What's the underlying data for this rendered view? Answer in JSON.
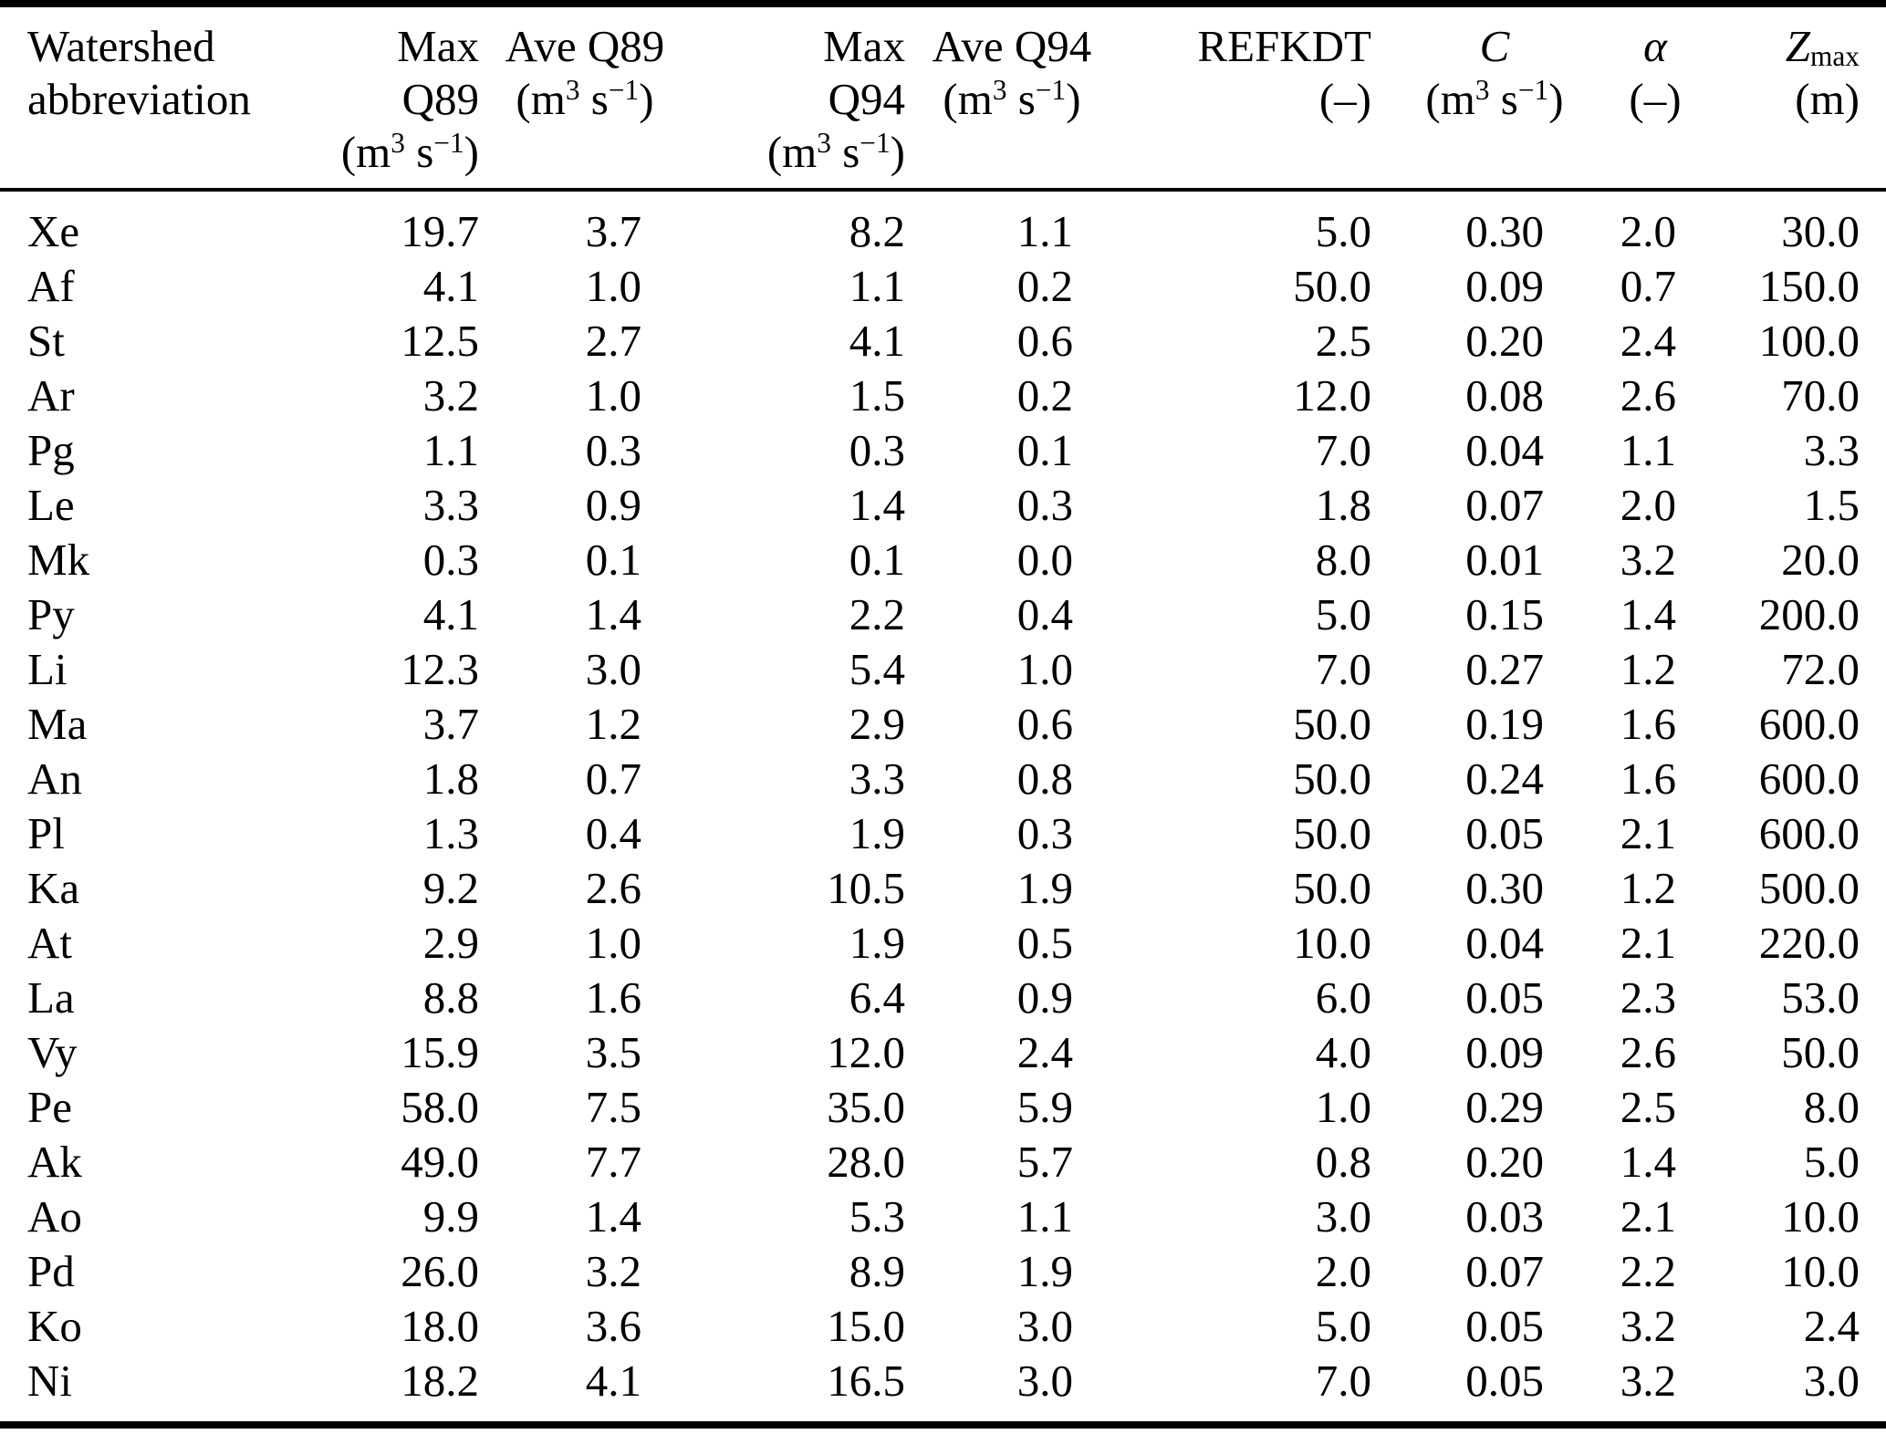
{
  "colors": {
    "text": "#000000",
    "background": "#ffffff",
    "rule": "#000000"
  },
  "table": {
    "header": {
      "watershed_line1": "Watershed",
      "watershed_line2": "abbreviation",
      "max_label": "Max",
      "q89_label": "Q89",
      "q94_label": "Q94",
      "ave_q89_label": "Ave Q89",
      "ave_q94_label": "Ave Q94",
      "refkdt_label": "REFKDT",
      "c_label": "C",
      "alpha_label": "α",
      "z_label": "Z",
      "z_subscript": "max",
      "unit_dimensionless": "(–)",
      "unit_meters": "(m)"
    },
    "unit_m3s": {
      "pre": "(m",
      "exponent": "3",
      "mid": " s",
      "exponent_minus": "−1",
      "post": ")"
    },
    "rows": [
      {
        "abbr": "Xe",
        "max_q89": "19.7",
        "ave_q89": "3.7",
        "max_q94": "8.2",
        "ave_q94": "1.1",
        "refkdt": "5.0",
        "c": "0.30",
        "alpha": "2.0",
        "zmax": "30.0"
      },
      {
        "abbr": "Af",
        "max_q89": "4.1",
        "ave_q89": "1.0",
        "max_q94": "1.1",
        "ave_q94": "0.2",
        "refkdt": "50.0",
        "c": "0.09",
        "alpha": "0.7",
        "zmax": "150.0"
      },
      {
        "abbr": "St",
        "max_q89": "12.5",
        "ave_q89": "2.7",
        "max_q94": "4.1",
        "ave_q94": "0.6",
        "refkdt": "2.5",
        "c": "0.20",
        "alpha": "2.4",
        "zmax": "100.0"
      },
      {
        "abbr": "Ar",
        "max_q89": "3.2",
        "ave_q89": "1.0",
        "max_q94": "1.5",
        "ave_q94": "0.2",
        "refkdt": "12.0",
        "c": "0.08",
        "alpha": "2.6",
        "zmax": "70.0"
      },
      {
        "abbr": "Pg",
        "max_q89": "1.1",
        "ave_q89": "0.3",
        "max_q94": "0.3",
        "ave_q94": "0.1",
        "refkdt": "7.0",
        "c": "0.04",
        "alpha": "1.1",
        "zmax": "3.3"
      },
      {
        "abbr": "Le",
        "max_q89": "3.3",
        "ave_q89": "0.9",
        "max_q94": "1.4",
        "ave_q94": "0.3",
        "refkdt": "1.8",
        "c": "0.07",
        "alpha": "2.0",
        "zmax": "1.5"
      },
      {
        "abbr": "Mk",
        "max_q89": "0.3",
        "ave_q89": "0.1",
        "max_q94": "0.1",
        "ave_q94": "0.0",
        "refkdt": "8.0",
        "c": "0.01",
        "alpha": "3.2",
        "zmax": "20.0"
      },
      {
        "abbr": "Py",
        "max_q89": "4.1",
        "ave_q89": "1.4",
        "max_q94": "2.2",
        "ave_q94": "0.4",
        "refkdt": "5.0",
        "c": "0.15",
        "alpha": "1.4",
        "zmax": "200.0"
      },
      {
        "abbr": "Li",
        "max_q89": "12.3",
        "ave_q89": "3.0",
        "max_q94": "5.4",
        "ave_q94": "1.0",
        "refkdt": "7.0",
        "c": "0.27",
        "alpha": "1.2",
        "zmax": "72.0"
      },
      {
        "abbr": "Ma",
        "max_q89": "3.7",
        "ave_q89": "1.2",
        "max_q94": "2.9",
        "ave_q94": "0.6",
        "refkdt": "50.0",
        "c": "0.19",
        "alpha": "1.6",
        "zmax": "600.0"
      },
      {
        "abbr": "An",
        "max_q89": "1.8",
        "ave_q89": "0.7",
        "max_q94": "3.3",
        "ave_q94": "0.8",
        "refkdt": "50.0",
        "c": "0.24",
        "alpha": "1.6",
        "zmax": "600.0"
      },
      {
        "abbr": "Pl",
        "max_q89": "1.3",
        "ave_q89": "0.4",
        "max_q94": "1.9",
        "ave_q94": "0.3",
        "refkdt": "50.0",
        "c": "0.05",
        "alpha": "2.1",
        "zmax": "600.0"
      },
      {
        "abbr": "Ka",
        "max_q89": "9.2",
        "ave_q89": "2.6",
        "max_q94": "10.5",
        "ave_q94": "1.9",
        "refkdt": "50.0",
        "c": "0.30",
        "alpha": "1.2",
        "zmax": "500.0"
      },
      {
        "abbr": "At",
        "max_q89": "2.9",
        "ave_q89": "1.0",
        "max_q94": "1.9",
        "ave_q94": "0.5",
        "refkdt": "10.0",
        "c": "0.04",
        "alpha": "2.1",
        "zmax": "220.0"
      },
      {
        "abbr": "La",
        "max_q89": "8.8",
        "ave_q89": "1.6",
        "max_q94": "6.4",
        "ave_q94": "0.9",
        "refkdt": "6.0",
        "c": "0.05",
        "alpha": "2.3",
        "zmax": "53.0"
      },
      {
        "abbr": "Vy",
        "max_q89": "15.9",
        "ave_q89": "3.5",
        "max_q94": "12.0",
        "ave_q94": "2.4",
        "refkdt": "4.0",
        "c": "0.09",
        "alpha": "2.6",
        "zmax": "50.0"
      },
      {
        "abbr": "Pe",
        "max_q89": "58.0",
        "ave_q89": "7.5",
        "max_q94": "35.0",
        "ave_q94": "5.9",
        "refkdt": "1.0",
        "c": "0.29",
        "alpha": "2.5",
        "zmax": "8.0"
      },
      {
        "abbr": "Ak",
        "max_q89": "49.0",
        "ave_q89": "7.7",
        "max_q94": "28.0",
        "ave_q94": "5.7",
        "refkdt": "0.8",
        "c": "0.20",
        "alpha": "1.4",
        "zmax": "5.0"
      },
      {
        "abbr": "Ao",
        "max_q89": "9.9",
        "ave_q89": "1.4",
        "max_q94": "5.3",
        "ave_q94": "1.1",
        "refkdt": "3.0",
        "c": "0.03",
        "alpha": "2.1",
        "zmax": "10.0"
      },
      {
        "abbr": "Pd",
        "max_q89": "26.0",
        "ave_q89": "3.2",
        "max_q94": "8.9",
        "ave_q94": "1.9",
        "refkdt": "2.0",
        "c": "0.07",
        "alpha": "2.2",
        "zmax": "10.0"
      },
      {
        "abbr": "Ko",
        "max_q89": "18.0",
        "ave_q89": "3.6",
        "max_q94": "15.0",
        "ave_q94": "3.0",
        "refkdt": "5.0",
        "c": "0.05",
        "alpha": "3.2",
        "zmax": "2.4"
      },
      {
        "abbr": "Ni",
        "max_q89": "18.2",
        "ave_q89": "4.1",
        "max_q94": "16.5",
        "ave_q94": "3.0",
        "refkdt": "7.0",
        "c": "0.05",
        "alpha": "3.2",
        "zmax": "3.0"
      }
    ]
  }
}
